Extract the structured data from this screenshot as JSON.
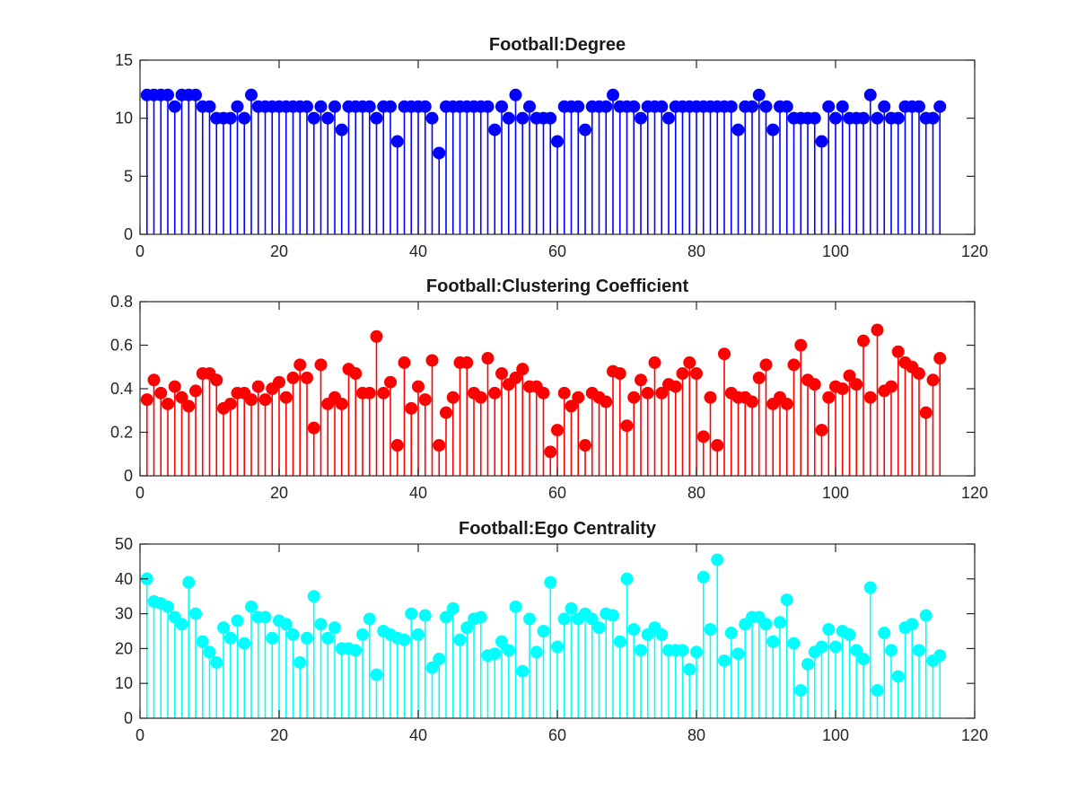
{
  "chart_data": [
    {
      "type": "stem",
      "title": "Football:Degree",
      "xlim": [
        0,
        120
      ],
      "ylim": [
        0,
        15
      ],
      "xticks": [
        0,
        20,
        40,
        60,
        80,
        100,
        120
      ],
      "yticks": [
        0,
        5,
        10,
        15
      ],
      "xtick_labels": [
        "0",
        "20",
        "40",
        "60",
        "80",
        "100",
        "120"
      ],
      "ytick_labels": [
        "0",
        "5",
        "10",
        "15"
      ],
      "color": "#0000ff",
      "grid": false,
      "x_start": 1,
      "values": [
        12,
        12,
        12,
        12,
        11,
        12,
        12,
        12,
        11,
        11,
        10,
        10,
        10,
        11,
        10,
        12,
        11,
        11,
        11,
        11,
        11,
        11,
        11,
        11,
        10,
        11,
        10,
        11,
        9,
        11,
        11,
        11,
        11,
        10,
        11,
        11,
        8,
        11,
        11,
        11,
        11,
        10,
        7,
        11,
        11,
        11,
        11,
        11,
        11,
        11,
        9,
        11,
        10,
        12,
        10,
        11,
        10,
        10,
        10,
        8,
        11,
        11,
        11,
        9,
        11,
        11,
        11,
        12,
        11,
        11,
        11,
        10,
        11,
        11,
        11,
        10,
        11,
        11,
        11,
        11,
        11,
        11,
        11,
        11,
        11,
        9,
        11,
        11,
        12,
        11,
        9,
        11,
        11,
        10,
        10,
        10,
        10,
        8,
        11,
        10,
        11,
        10,
        10,
        10,
        12,
        10,
        11,
        10,
        10,
        11,
        11,
        11,
        10,
        10,
        11
      ]
    },
    {
      "type": "stem",
      "title": "Football:Clustering Coefficient",
      "xlim": [
        0,
        120
      ],
      "ylim": [
        0,
        0.8
      ],
      "xticks": [
        0,
        20,
        40,
        60,
        80,
        100,
        120
      ],
      "yticks": [
        0,
        0.2,
        0.4,
        0.6,
        0.8
      ],
      "xtick_labels": [
        "0",
        "20",
        "40",
        "60",
        "80",
        "100",
        "120"
      ],
      "ytick_labels": [
        "0",
        "0.2",
        "0.4",
        "0.6",
        "0.8"
      ],
      "color": "#ff0000",
      "grid": false,
      "x_start": 1,
      "values": [
        0.35,
        0.44,
        0.38,
        0.33,
        0.41,
        0.36,
        0.32,
        0.39,
        0.47,
        0.47,
        0.44,
        0.31,
        0.33,
        0.38,
        0.38,
        0.35,
        0.41,
        0.35,
        0.4,
        0.43,
        0.36,
        0.45,
        0.51,
        0.45,
        0.22,
        0.51,
        0.33,
        0.36,
        0.33,
        0.49,
        0.47,
        0.38,
        0.38,
        0.64,
        0.38,
        0.43,
        0.14,
        0.52,
        0.31,
        0.41,
        0.35,
        0.53,
        0.14,
        0.29,
        0.36,
        0.52,
        0.52,
        0.38,
        0.36,
        0.54,
        0.38,
        0.47,
        0.42,
        0.45,
        0.49,
        0.41,
        0.41,
        0.38,
        0.11,
        0.21,
        0.38,
        0.32,
        0.36,
        0.14,
        0.38,
        0.36,
        0.34,
        0.48,
        0.47,
        0.23,
        0.36,
        0.44,
        0.38,
        0.52,
        0.38,
        0.42,
        0.41,
        0.47,
        0.52,
        0.47,
        0.18,
        0.36,
        0.14,
        0.56,
        0.38,
        0.36,
        0.36,
        0.34,
        0.45,
        0.51,
        0.33,
        0.36,
        0.33,
        0.51,
        0.6,
        0.44,
        0.42,
        0.21,
        0.36,
        0.41,
        0.4,
        0.46,
        0.42,
        0.62,
        0.36,
        0.67,
        0.39,
        0.41,
        0.57,
        0.52,
        0.5,
        0.47,
        0.29,
        0.44,
        0.54
      ]
    },
    {
      "type": "stem",
      "title": "Football:Ego Centrality",
      "xlim": [
        0,
        120
      ],
      "ylim": [
        0,
        50
      ],
      "xticks": [
        0,
        20,
        40,
        60,
        80,
        100,
        120
      ],
      "yticks": [
        0,
        10,
        20,
        30,
        40,
        50
      ],
      "xtick_labels": [
        "0",
        "20",
        "40",
        "60",
        "80",
        "100",
        "120"
      ],
      "ytick_labels": [
        "0",
        "10",
        "20",
        "30",
        "40",
        "50"
      ],
      "color": "#00ffff",
      "grid": false,
      "x_start": 1,
      "values": [
        40,
        33.5,
        33,
        32,
        29,
        27,
        39,
        30,
        22,
        19,
        16,
        26,
        23,
        28,
        21.5,
        32,
        29,
        29,
        23,
        28,
        27,
        24,
        16,
        23,
        35,
        27,
        23,
        26,
        20,
        20,
        19.5,
        24,
        28.5,
        12.5,
        25,
        24,
        23,
        22.5,
        30,
        24,
        29.5,
        14.5,
        17,
        29,
        31.5,
        22.5,
        26,
        28.5,
        29,
        18,
        18.5,
        22,
        19.5,
        32,
        13.5,
        28.5,
        19,
        25,
        39,
        20.5,
        28.5,
        31.5,
        28.5,
        30,
        28.5,
        26,
        30,
        29.5,
        22,
        40,
        25.5,
        19.5,
        24,
        26,
        24,
        19.5,
        19.5,
        19.5,
        14,
        19,
        40.5,
        25.5,
        45.5,
        16.5,
        24.5,
        18.5,
        27,
        29,
        29,
        27,
        22,
        27.5,
        34,
        21.5,
        8,
        15.5,
        19,
        20.5,
        25.5,
        20.5,
        25,
        24,
        19.5,
        17,
        37.5,
        8,
        24.5,
        19.5,
        12,
        26,
        27,
        19.5,
        29.5,
        16.5,
        18
      ]
    }
  ]
}
